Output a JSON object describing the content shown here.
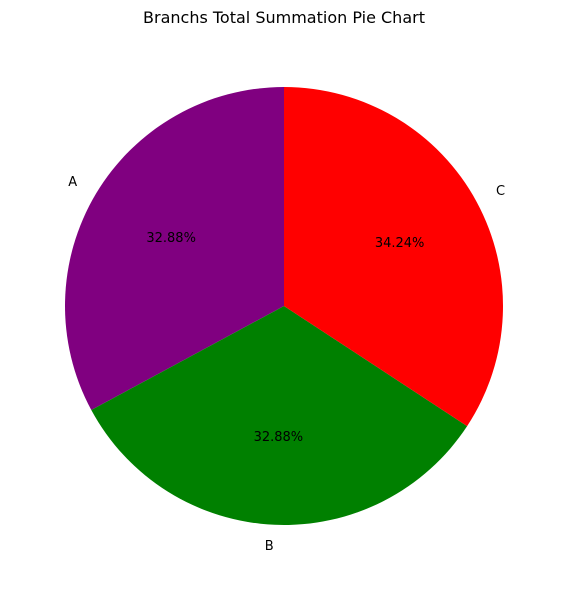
{
  "chart_data": {
    "type": "pie",
    "title": "Branchs Total Summation Pie Chart",
    "categories": [
      "A",
      "B",
      "C"
    ],
    "values": [
      32.88,
      32.88,
      34.24
    ],
    "value_labels": [
      "32.88%",
      "32.88%",
      "34.24%"
    ],
    "colors": [
      "#800080",
      "#008000",
      "#ff0000"
    ],
    "start_angle_deg": 90,
    "direction": "counterclockwise",
    "legend": "none"
  }
}
